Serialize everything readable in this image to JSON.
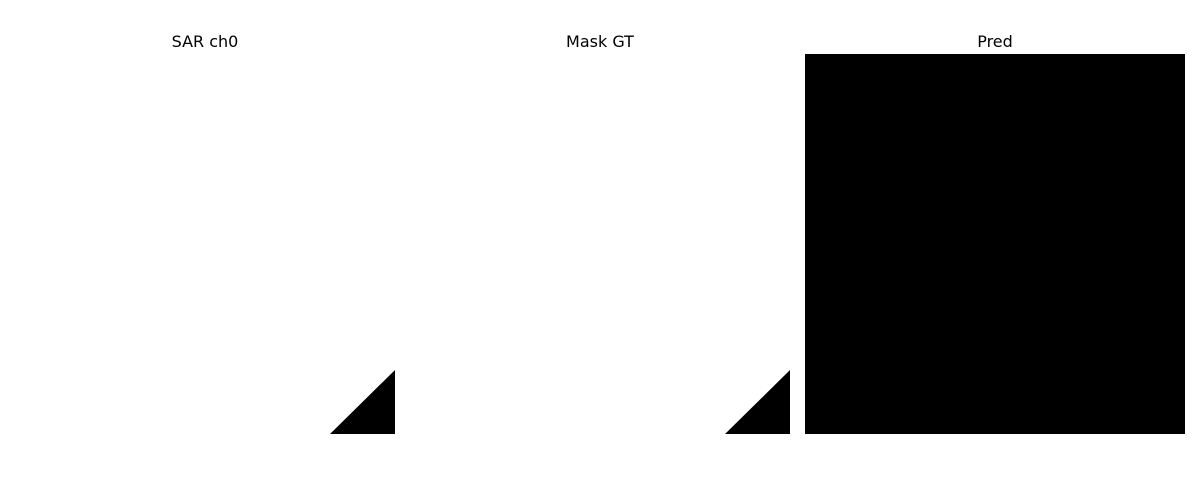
{
  "panels": {
    "sar": {
      "title": "SAR ch0"
    },
    "mask": {
      "title": "Mask GT"
    },
    "pred": {
      "title": "Pred"
    }
  },
  "colors": {
    "background": "#ffffff",
    "foreground": "#000000"
  }
}
